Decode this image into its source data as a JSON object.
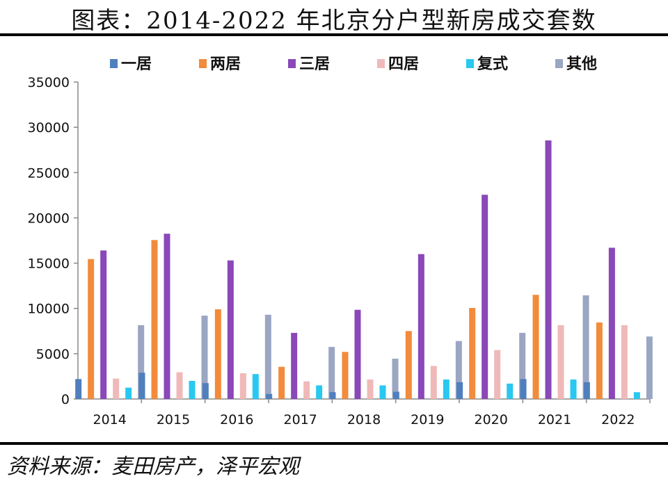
{
  "title": "图表：2014-2022 年北京分户型新房成交套数",
  "source": "资料来源：麦田房产，泽平宏观",
  "colors": {
    "一居": "#4f7fbd",
    "两居": "#f28b3b",
    "三居": "#8a48b8",
    "四居": "#f0b9b9",
    "复式": "#29c8f0",
    "其他": "#9aa6c2"
  },
  "chart_data": {
    "type": "bar",
    "categories": [
      "2014",
      "2015",
      "2016",
      "2017",
      "2018",
      "2019",
      "2020",
      "2021",
      "2022"
    ],
    "series": [
      {
        "name": "一居",
        "values": [
          2200,
          2900,
          1750,
          550,
          750,
          800,
          1850,
          2200,
          1850
        ]
      },
      {
        "name": "两居",
        "values": [
          15450,
          17550,
          9900,
          3550,
          5200,
          7500,
          10050,
          11500,
          8450
        ]
      },
      {
        "name": "三居",
        "values": [
          16400,
          18250,
          15300,
          7300,
          9850,
          16000,
          22550,
          28550,
          16700
        ]
      },
      {
        "name": "四居",
        "values": [
          2250,
          2950,
          2850,
          1950,
          2150,
          3650,
          5400,
          8150,
          8150
        ]
      },
      {
        "name": "复式",
        "values": [
          1250,
          2000,
          2750,
          1500,
          1500,
          2150,
          1700,
          2150,
          750
        ]
      },
      {
        "name": "其他",
        "values": [
          8150,
          9200,
          9300,
          5750,
          4450,
          6400,
          7300,
          11450,
          6900
        ]
      }
    ],
    "ylim": [
      0,
      35000
    ],
    "yticks": [
      0,
      5000,
      10000,
      15000,
      20000,
      25000,
      30000,
      35000
    ],
    "legend_position": "top",
    "grid": false
  }
}
